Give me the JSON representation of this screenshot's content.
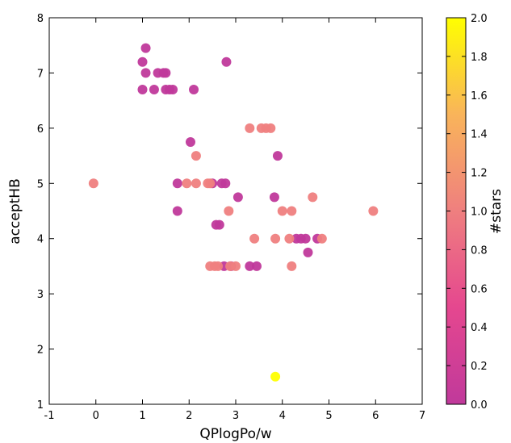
{
  "chart_data": {
    "type": "scatter",
    "xlabel": "QPlogPo/w",
    "ylabel": "acceptHB",
    "xlim": [
      -1,
      7
    ],
    "ylim": [
      1,
      8
    ],
    "x_ticks": [
      "-1",
      "0",
      "1",
      "2",
      "3",
      "4",
      "5",
      "6",
      "7"
    ],
    "y_ticks": [
      "1",
      "2",
      "3",
      "4",
      "5",
      "6",
      "7",
      "8"
    ],
    "grid": false,
    "colorbar": {
      "label": "#stars",
      "range": [
        0.0,
        2.0
      ],
      "ticks": [
        "0.0",
        "0.2",
        "0.4",
        "0.6",
        "0.8",
        "1.0",
        "1.2",
        "1.4",
        "1.6",
        "1.8",
        "2.0"
      ],
      "colormap": "spring",
      "low_color": "#c0399b",
      "mid_color": "#ef7f7f",
      "high_color": "#ffff00"
    },
    "series": [
      {
        "color_value": 0,
        "points": [
          [
            1.07,
            7.45
          ],
          [
            1.0,
            7.2
          ],
          [
            1.07,
            7.0
          ],
          [
            1.33,
            7.0
          ],
          [
            1.45,
            7.0
          ],
          [
            1.5,
            7.0
          ],
          [
            1.0,
            6.7
          ],
          [
            1.25,
            6.7
          ],
          [
            1.5,
            6.7
          ],
          [
            1.58,
            6.7
          ],
          [
            1.65,
            6.7
          ],
          [
            2.1,
            6.7
          ],
          [
            2.8,
            7.2
          ],
          [
            2.03,
            5.75
          ],
          [
            3.9,
            5.5
          ],
          [
            1.75,
            5.0
          ],
          [
            2.5,
            5.0
          ],
          [
            2.7,
            5.0
          ],
          [
            2.78,
            5.0
          ],
          [
            3.05,
            4.75
          ],
          [
            3.83,
            4.75
          ],
          [
            1.75,
            4.5
          ],
          [
            2.58,
            4.25
          ],
          [
            2.65,
            4.25
          ],
          [
            4.3,
            4.0
          ],
          [
            4.4,
            4.0
          ],
          [
            4.5,
            4.0
          ],
          [
            4.75,
            4.0
          ],
          [
            4.55,
            3.75
          ],
          [
            2.75,
            3.5
          ],
          [
            2.9,
            3.5
          ],
          [
            3.3,
            3.5
          ],
          [
            3.45,
            3.5
          ]
        ]
      },
      {
        "color_value": 1,
        "points": [
          [
            -0.05,
            5.0
          ],
          [
            3.3,
            6.0
          ],
          [
            3.55,
            6.0
          ],
          [
            3.65,
            6.0
          ],
          [
            3.75,
            6.0
          ],
          [
            2.15,
            5.5
          ],
          [
            1.95,
            5.0
          ],
          [
            2.15,
            5.0
          ],
          [
            2.4,
            5.0
          ],
          [
            2.45,
            5.0
          ],
          [
            4.65,
            4.75
          ],
          [
            2.85,
            4.5
          ],
          [
            4.0,
            4.5
          ],
          [
            4.2,
            4.5
          ],
          [
            5.95,
            4.5
          ],
          [
            3.4,
            4.0
          ],
          [
            3.85,
            4.0
          ],
          [
            4.15,
            4.0
          ],
          [
            4.85,
            4.0
          ],
          [
            2.45,
            3.5
          ],
          [
            2.55,
            3.5
          ],
          [
            2.62,
            3.5
          ],
          [
            2.88,
            3.5
          ],
          [
            3.0,
            3.5
          ],
          [
            4.2,
            3.5
          ]
        ]
      },
      {
        "color_value": 2,
        "points": [
          [
            3.85,
            1.5
          ]
        ]
      }
    ]
  }
}
